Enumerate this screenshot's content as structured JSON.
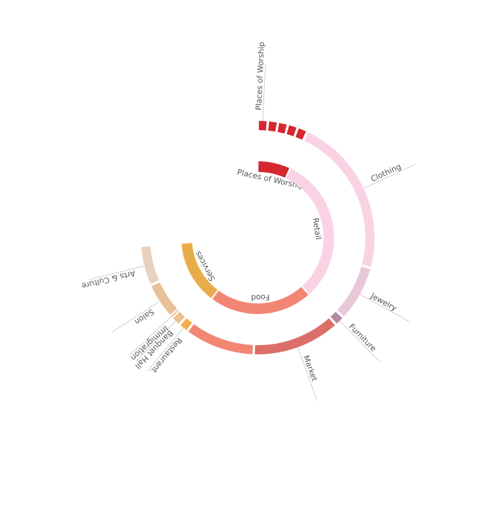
{
  "chart_data": {
    "type": "sunburst",
    "inner": {
      "categories": [
        "Places of Worship",
        "Retail",
        "Food",
        "Services"
      ],
      "values": [
        25,
        113,
        79,
        49
      ],
      "colors": [
        "#d6262f",
        "#f9d3e4",
        "#f28673",
        "#e8ad4a"
      ]
    },
    "outer": {
      "categories": [
        "Places of Worship",
        null,
        null,
        null,
        null,
        "Clothing",
        "Jewelry",
        "Furniture",
        "Market",
        null,
        "Restaurant",
        "Banquet Hall",
        "Immigration",
        "Salon",
        "Arts & Culture"
      ],
      "values": [
        5,
        5,
        5,
        5,
        5,
        80,
        28,
        5,
        44,
        35,
        5,
        5,
        1,
        18,
        20
      ],
      "colors": [
        "#d6262f",
        "#d6262f",
        "#d6262f",
        "#d6262f",
        "#d6262f",
        "#f9d3e4",
        "#e8c8d8",
        "#b08aa0",
        "#db6e68",
        "#f28673",
        "#f0b050",
        "#eac090",
        "#e8b880",
        "#e8c09a",
        "#e8d2bf"
      ]
    }
  }
}
